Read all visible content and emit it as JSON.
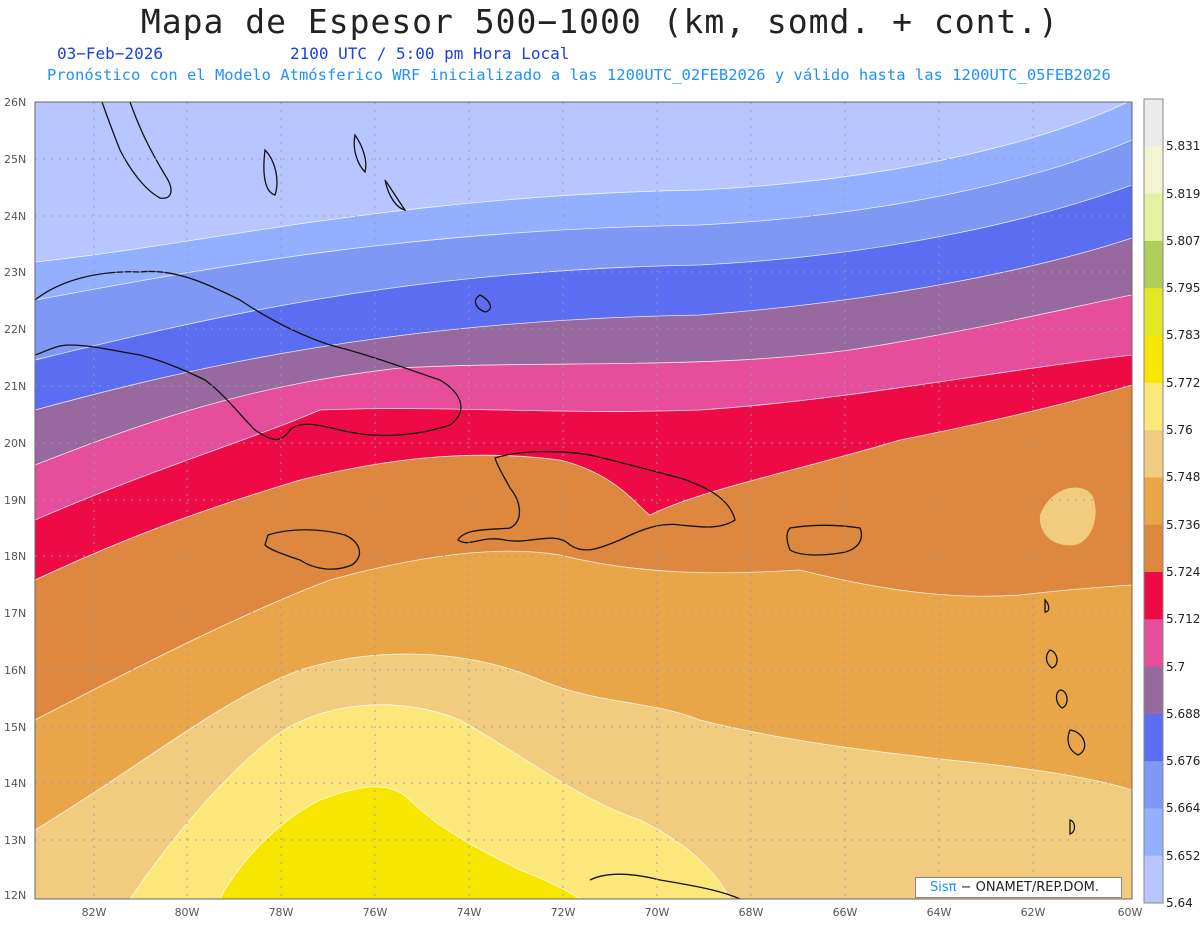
{
  "header": {
    "title": "Mapa de Espesor 500−1000 (km, somd. + cont.)",
    "date": "03−Feb−2026",
    "time": "2100 UTC / 5:00 pm Hora Local",
    "model_info": "Pronóstico con el Modelo Atmósferico WRF inicializado a las 1200UTC_02FEB2026 y válido hasta las  1200UTC_05FEB2026"
  },
  "map": {
    "lat_labels": [
      "26N",
      "25N",
      "24N",
      "23N",
      "22N",
      "21N",
      "20N",
      "19N",
      "18N",
      "17N",
      "16N",
      "15N",
      "14N",
      "13N",
      "12N"
    ],
    "lon_labels": [
      "82W",
      "80W",
      "78W",
      "76W",
      "74W",
      "72W",
      "70W",
      "68W",
      "66W",
      "64W",
      "62W",
      "60W"
    ],
    "lat_range": [
      12,
      26
    ],
    "lon_range": [
      -83.2,
      -59.9
    ],
    "grid": true,
    "gridline_color": "#9a9ab0"
  },
  "colorbar": {
    "levels": [
      "5.831",
      "5.819",
      "5.807",
      "5.795",
      "5.783",
      "5.772",
      "5.76",
      "5.748",
      "5.736",
      "5.724",
      "5.712",
      "5.7",
      "5.688",
      "5.676",
      "5.664",
      "5.652",
      "5.64"
    ],
    "colors_top_to_bottom": [
      "#ebebeb",
      "#f2f5d0",
      "#e3f2a0",
      "#aecd5a",
      "#e2e826",
      "#f7e600",
      "#fce77b",
      "#f2cc7e",
      "#e9a649",
      "#dd873f",
      "#ed0a45",
      "#e64e9b",
      "#97699f",
      "#5b6df0",
      "#7d98f5",
      "#92b0ff",
      "#b8c6ff"
    ]
  },
  "credit": {
    "sis": "Sisπ",
    "text": "− ONAMET/REP.DOM."
  }
}
